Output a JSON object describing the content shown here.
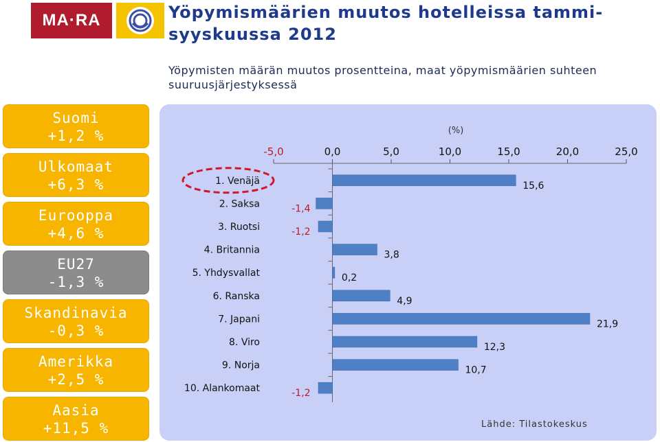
{
  "logo": {
    "brand_text": "MA·RA"
  },
  "header": {
    "title": "Yöpymismäärien muutos hotelleissa tammi-syyskuussa 2012",
    "subtitle": "Yöpymisten määrän muutos prosentteina, maat yöpymismäärien suhteen suuruusjärjestyksessä"
  },
  "regions": [
    {
      "name": "Suomi",
      "value": "+1,2 %"
    },
    {
      "name": "Ulkomaat",
      "value": "+6,3 %"
    },
    {
      "name": "Eurooppa",
      "value": "+4,6 %"
    },
    {
      "name": "EU27",
      "value": "-1,3 %",
      "highlighted": true
    },
    {
      "name": "Skandinavia",
      "value": "-0,3 %"
    },
    {
      "name": "Amerikka",
      "value": "+2,5 %"
    },
    {
      "name": "Aasia",
      "value": "+11,5 %"
    }
  ],
  "colors": {
    "region_box": "#f7b500",
    "region_box_highlighted": "#8c8c8c",
    "panel_background": "#c8d0f7",
    "bar": "#4f7fc4",
    "negative_label": "#c0182a",
    "title": "#1e3a8a",
    "highlight_ring": "#d0182a"
  },
  "chart_data": {
    "type": "bar",
    "orientation": "horizontal",
    "unit_label": "(%)",
    "xlim": [
      -5.0,
      25.0
    ],
    "x_ticks": [
      "-5,0",
      "0,0",
      "5,0",
      "10,0",
      "15,0",
      "20,0",
      "25,0"
    ],
    "x_tick_values": [
      -5,
      0,
      5,
      10,
      15,
      20,
      25
    ],
    "categories": [
      "1. Venäjä",
      "2. Saksa",
      "3. Ruotsi",
      "4. Britannia",
      "5. Yhdysvallat",
      "6. Ranska",
      "7. Japani",
      "8. Viro",
      "9. Norja",
      "10. Alankomaat"
    ],
    "values": [
      15.6,
      -1.4,
      -1.2,
      3.8,
      0.2,
      4.9,
      21.9,
      12.3,
      10.7,
      -1.2
    ],
    "value_labels": [
      "15,6",
      "-1,4",
      "-1,2",
      "3,8",
      "0,2",
      "4,9",
      "21,9",
      "12,3",
      "10,7",
      "-1,2"
    ],
    "highlighted_category": "1. Venäjä",
    "axis_position": "top",
    "grid": false,
    "legend": "none"
  },
  "footer": {
    "source": "Lähde: Tilastokeskus"
  }
}
